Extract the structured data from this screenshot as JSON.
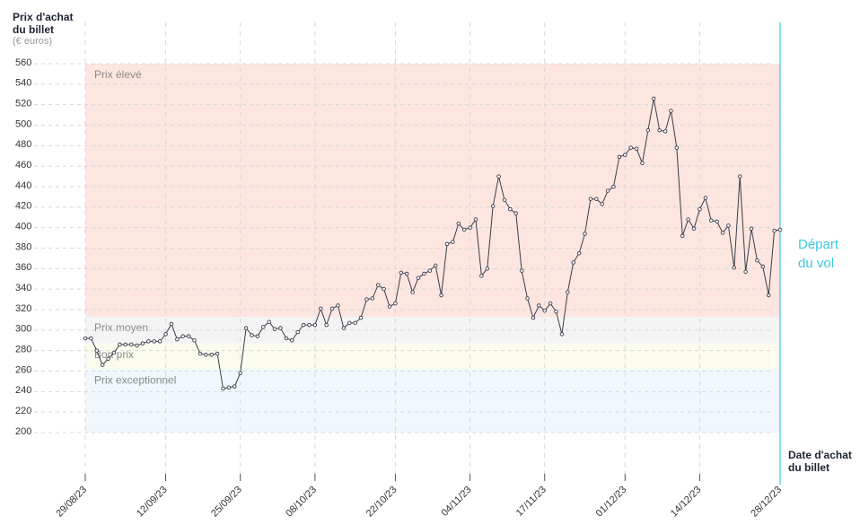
{
  "chart_data": {
    "type": "line",
    "y_label": "Prix d'achat du billet",
    "y_unit": "(€ euros)",
    "x_label": "Date d'achat du billet",
    "annotation": {
      "text": "Départ du vol",
      "x": "28/12/23",
      "color": "#3cc8e0"
    },
    "bands": [
      {
        "name": "Prix élevé",
        "from": 313,
        "to": 560,
        "color": "#fde6e0"
      },
      {
        "name": "Prix moyen",
        "from": 287,
        "to": 313,
        "color": "#f4f4f4"
      },
      {
        "name": "Bon prix",
        "from": 262,
        "to": 287,
        "color": "#fbfbee"
      },
      {
        "name": "Prix exceptionnel",
        "from": 200,
        "to": 262,
        "color": "#f0f8fd"
      }
    ],
    "x": [
      "29/08/23",
      "30/08/23",
      "31/08/23",
      "01/09/23",
      "02/09/23",
      "03/09/23",
      "04/09/23",
      "05/09/23",
      "06/09/23",
      "07/09/23",
      "08/09/23",
      "09/09/23",
      "10/09/23",
      "11/09/23",
      "12/09/23",
      "13/09/23",
      "14/09/23",
      "15/09/23",
      "16/09/23",
      "17/09/23",
      "18/09/23",
      "19/09/23",
      "20/09/23",
      "21/09/23",
      "22/09/23",
      "23/09/23",
      "24/09/23",
      "25/09/23",
      "26/09/23",
      "27/09/23",
      "28/09/23",
      "29/09/23",
      "30/09/23",
      "01/10/23",
      "02/10/23",
      "03/10/23",
      "04/10/23",
      "05/10/23",
      "06/10/23",
      "07/10/23",
      "08/10/23",
      "09/10/23",
      "10/10/23",
      "11/10/23",
      "12/10/23",
      "13/10/23",
      "14/10/23",
      "15/10/23",
      "16/10/23",
      "17/10/23",
      "18/10/23",
      "19/10/23",
      "20/10/23",
      "21/10/23",
      "22/10/23",
      "23/10/23",
      "24/10/23",
      "25/10/23",
      "26/10/23",
      "27/10/23",
      "28/10/23",
      "29/10/23",
      "30/10/23",
      "31/10/23",
      "01/11/23",
      "02/11/23",
      "03/11/23",
      "04/11/23",
      "05/11/23",
      "06/11/23",
      "07/11/23",
      "08/11/23",
      "09/11/23",
      "10/11/23",
      "11/11/23",
      "12/11/23",
      "13/11/23",
      "14/11/23",
      "15/11/23",
      "16/11/23",
      "17/11/23",
      "18/11/23",
      "19/11/23",
      "20/11/23",
      "21/11/23",
      "22/11/23",
      "23/11/23",
      "24/11/23",
      "25/11/23",
      "26/11/23",
      "27/11/23",
      "28/11/23",
      "29/11/23",
      "30/11/23",
      "01/12/23",
      "02/12/23",
      "03/12/23",
      "04/12/23",
      "05/12/23",
      "06/12/23",
      "07/12/23",
      "08/12/23",
      "09/12/23",
      "10/12/23",
      "11/12/23",
      "12/12/23",
      "13/12/23",
      "14/12/23",
      "15/12/23",
      "16/12/23",
      "17/12/23",
      "18/12/23",
      "19/12/23",
      "20/12/23",
      "21/12/23",
      "22/12/23",
      "23/12/23",
      "24/12/23",
      "25/12/23",
      "26/12/23",
      "27/12/23",
      "28/12/23"
    ],
    "series": [
      {
        "name": "Prix",
        "color": "#3a3d4a",
        "values": [
          292,
          292,
          280,
          266,
          272,
          278,
          286,
          286,
          286,
          285,
          287,
          289,
          289,
          289,
          296,
          306,
          291,
          294,
          294,
          290,
          277,
          276,
          276,
          277,
          243,
          244,
          245,
          258,
          302,
          295,
          294,
          303,
          308,
          301,
          302,
          292,
          290,
          298,
          305,
          305,
          305,
          321,
          305,
          321,
          324,
          302,
          307,
          307,
          312,
          330,
          331,
          344,
          340,
          323,
          326,
          356,
          355,
          337,
          351,
          355,
          358,
          363,
          334,
          384,
          386,
          404,
          398,
          400,
          408,
          353,
          360,
          421,
          450,
          427,
          418,
          414,
          358,
          331,
          312,
          324,
          319,
          326,
          318,
          296,
          337,
          366,
          375,
          394,
          428,
          428,
          423,
          436,
          440,
          469,
          471,
          478,
          477,
          463,
          495,
          526,
          495,
          494,
          514,
          478,
          392,
          408,
          399,
          418,
          429,
          407,
          406,
          395,
          402,
          361,
          450,
          357,
          399,
          368,
          362,
          334,
          397,
          398
        ]
      }
    ],
    "xlim": [
      "29/08/23",
      "28/12/23"
    ],
    "xticks": [
      "29/08/23",
      "12/09/23",
      "25/09/23",
      "08/10/23",
      "22/10/23",
      "04/11/23",
      "17/11/23",
      "01/12/23",
      "14/12/23",
      "28/12/23"
    ],
    "ylim": [
      200,
      560
    ],
    "yticks": [
      200,
      220,
      240,
      260,
      280,
      300,
      320,
      340,
      360,
      380,
      400,
      420,
      440,
      460,
      480,
      500,
      520,
      540,
      560
    ],
    "grid": true
  }
}
